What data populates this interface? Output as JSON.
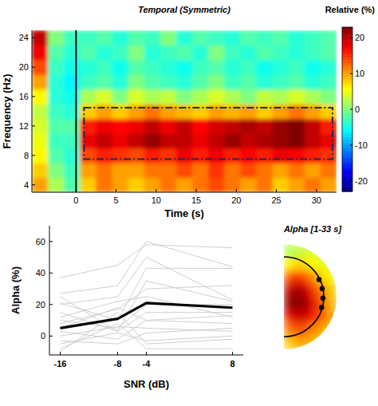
{
  "chart_data": [
    {
      "type": "heatmap",
      "title": "Temporal (Symmetric)",
      "x_label": "Time (s)",
      "y_label": "Frequency (Hz)",
      "xlim": [
        -5.5,
        32.5
      ],
      "ylim": [
        3,
        25
      ],
      "xticks": [
        0,
        5,
        10,
        15,
        20,
        25,
        30
      ],
      "yticks": [
        4,
        8,
        12,
        16,
        20,
        24
      ],
      "cells": [
        [
          10,
          2,
          -2,
          8,
          12,
          10,
          8,
          10,
          12,
          10,
          12,
          14,
          12,
          10,
          12,
          8,
          10,
          12,
          10
        ],
        [
          8,
          0,
          -3,
          10,
          12,
          10,
          10,
          12,
          12,
          14,
          12,
          15,
          12,
          14,
          12,
          10,
          12,
          10,
          12
        ],
        [
          6,
          -2,
          -4,
          14,
          16,
          15,
          14,
          16,
          15,
          18,
          16,
          18,
          16,
          17,
          16,
          18,
          17,
          16,
          15
        ],
        [
          5,
          -3,
          -3,
          18,
          20,
          18,
          20,
          22,
          20,
          20,
          18,
          20,
          22,
          20,
          21,
          22,
          24,
          20,
          18
        ],
        [
          4,
          -2,
          -2,
          16,
          18,
          17,
          18,
          20,
          18,
          20,
          17,
          19,
          20,
          21,
          20,
          22,
          25,
          20,
          16
        ],
        [
          3,
          -3,
          -4,
          8,
          10,
          8,
          10,
          12,
          10,
          9,
          8,
          10,
          9,
          10,
          8,
          10,
          12,
          10,
          8
        ],
        [
          6,
          -4,
          -5,
          2,
          4,
          0,
          4,
          2,
          3,
          0,
          2,
          4,
          2,
          0,
          3,
          2,
          4,
          2,
          0
        ],
        [
          10,
          -4,
          -6,
          -3,
          -2,
          -4,
          0,
          -2,
          -3,
          -4,
          -2,
          0,
          -3,
          -2,
          -4,
          -3,
          -2,
          -4,
          -3
        ],
        [
          14,
          -3,
          -5,
          -4,
          -3,
          -5,
          -2,
          -3,
          -4,
          -5,
          -3,
          -2,
          -4,
          -3,
          -5,
          -4,
          -3,
          -5,
          -4
        ],
        [
          18,
          -2,
          -4,
          -2,
          -4,
          -3,
          0,
          -4,
          -3,
          -2,
          -4,
          0,
          -3,
          -4,
          -2,
          -3,
          -4,
          -3,
          -2
        ],
        [
          20,
          0,
          -3,
          -3,
          -2,
          -4,
          -2,
          -3,
          0,
          -4,
          -2,
          -3,
          -4,
          -2,
          -3,
          -2,
          -4,
          -3,
          -2
        ]
      ],
      "colorbar": {
        "label": "Relative (%)",
        "range": [
          -23,
          23
        ],
        "ticks": [
          -20,
          -10,
          0,
          10,
          20
        ]
      },
      "event_time": 0,
      "roi": {
        "x": [
          1,
          32
        ],
        "y": [
          7.5,
          14.5
        ]
      }
    },
    {
      "type": "line",
      "x_label": "SNR (dB)",
      "y_label": "Alpha (%)",
      "x": [
        -16,
        -8,
        -4,
        8
      ],
      "xlim": [
        -17.5,
        9.5
      ],
      "ylim": [
        -12,
        70
      ],
      "xticks": [
        -16,
        -8,
        -4,
        8
      ],
      "yticks": [
        0,
        20,
        40,
        60
      ],
      "series": [
        {
          "color": "#c8c8c8",
          "values": [
            37,
            45,
            58,
            56
          ]
        },
        {
          "color": "#c8c8c8",
          "values": [
            27,
            32,
            60,
            44
          ]
        },
        {
          "color": "#c8c8c8",
          "values": [
            21,
            10,
            43,
            43
          ]
        },
        {
          "color": "#c8c8c8",
          "values": [
            20,
            25,
            50,
            23
          ]
        },
        {
          "color": "#c8c8c8",
          "values": [
            15,
            3,
            35,
            22
          ]
        },
        {
          "color": "#c8c8c8",
          "values": [
            12,
            22,
            25,
            12
          ]
        },
        {
          "color": "#c8c8c8",
          "values": [
            10,
            5,
            20,
            20
          ]
        },
        {
          "color": "#c8c8c8",
          "values": [
            25,
            3,
            15,
            15
          ]
        },
        {
          "color": "#c8c8c8",
          "values": [
            5,
            18,
            10,
            13
          ]
        },
        {
          "color": "#c8c8c8",
          "values": [
            3,
            -2,
            10,
            8
          ]
        },
        {
          "color": "#c8c8c8",
          "values": [
            0,
            6,
            5,
            3
          ]
        },
        {
          "color": "#c8c8c8",
          "values": [
            -5,
            2,
            -3,
            0
          ]
        },
        {
          "color": "#c8c8c8",
          "values": [
            -8,
            8,
            -8,
            -8
          ]
        },
        {
          "color": "#c8c8c8",
          "values": [
            8,
            17,
            30,
            32
          ]
        },
        {
          "color": "#c8c8c8",
          "values": [
            -3,
            -5,
            2,
            5
          ]
        },
        {
          "color": "#c8c8c8",
          "values": [
            -10,
            15,
            -5,
            -2
          ]
        },
        {
          "color": "#000000",
          "values": [
            5,
            11,
            21,
            18
          ]
        }
      ]
    },
    {
      "type": "topography",
      "title": "Alpha [1-33 s]",
      "cells": [
        [
          2,
          3,
          4,
          3,
          2
        ],
        [
          6,
          8,
          6,
          5,
          4
        ],
        [
          14,
          16,
          12,
          8,
          6
        ],
        [
          20,
          22,
          18,
          12,
          8
        ],
        [
          22,
          23,
          20,
          14,
          9
        ],
        [
          18,
          20,
          18,
          14,
          10
        ],
        [
          12,
          14,
          12,
          10,
          8
        ],
        [
          8,
          10,
          9,
          8,
          6
        ]
      ]
    }
  ]
}
